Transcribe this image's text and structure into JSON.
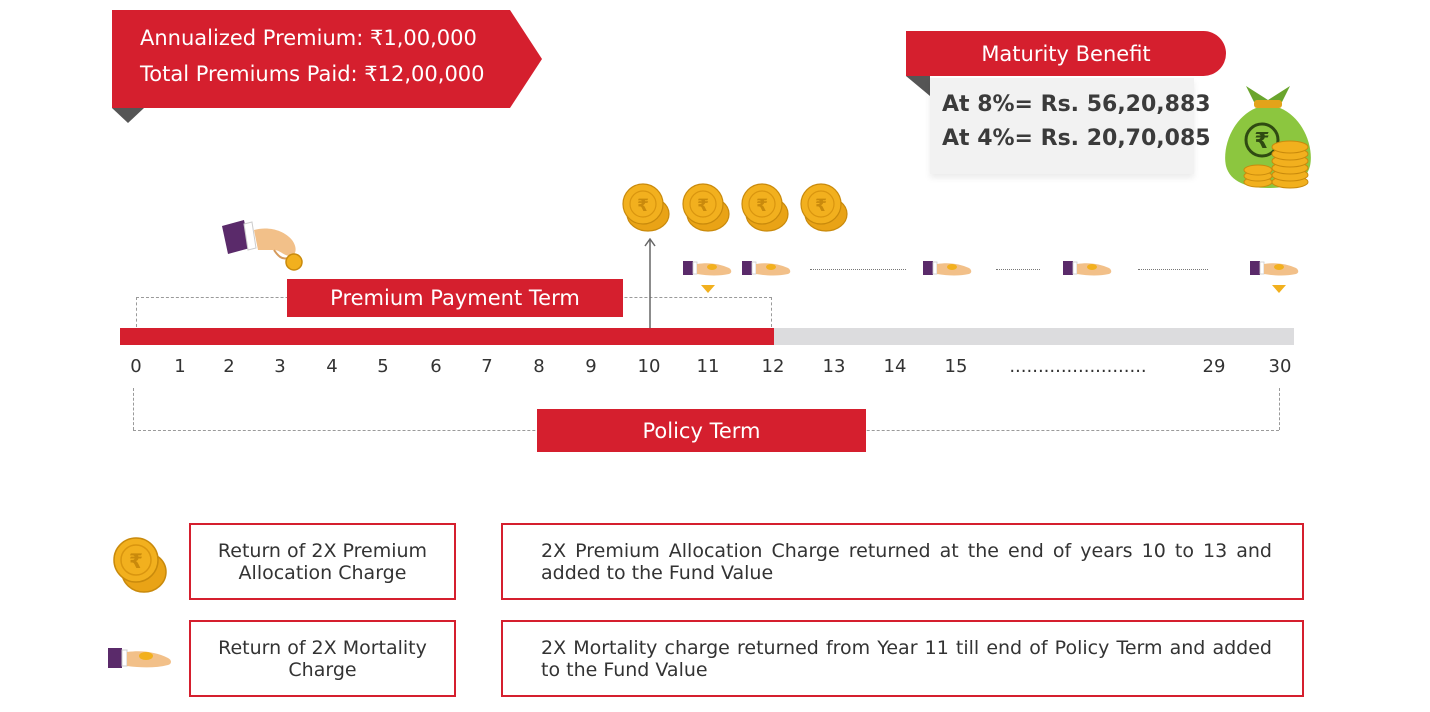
{
  "premium_banner": {
    "annualized_premium": "Annualized Premium: ₹1,00,000",
    "total_premiums_paid": "Total Premiums Paid: ₹12,00,000"
  },
  "maturity": {
    "title": "Maturity Benefit",
    "at_8": "At 8%= Rs. 56,20,883",
    "at_4": "At 4%= Rs. 20,70,085"
  },
  "premium_payment_term": "Premium Payment Term",
  "policy_term": "Policy Term",
  "timeline": {
    "ticks": [
      "0",
      "1",
      "2",
      "3",
      "4",
      "5",
      "6",
      "7",
      "8",
      "9",
      "10",
      "11",
      "12",
      "13",
      "14",
      "15",
      "........................",
      "29",
      "30"
    ],
    "paid_until_year": 12,
    "coin_years": [
      10,
      11,
      12,
      13
    ],
    "mortality_return_from_year": 11
  },
  "icons": {
    "coin": "rupee-coin-icon",
    "hand": "hand-receiving-icon",
    "money_bag": "money-bag-icon",
    "paying_hand": "paying-hand-icon",
    "rupee_symbol": "₹"
  },
  "legend": [
    {
      "label": "Return of 2X Premium Allocation Charge",
      "description": "2X Premium Allocation Charge returned at the end of years 10 to 13 and added to the Fund Value"
    },
    {
      "label": "Return of 2X Mortality Charge",
      "description": "2X Mortality charge returned from Year 11 till end of Policy Term and added to the Fund Value"
    }
  ],
  "colors": {
    "brand_red": "#d51f2e",
    "dark_red": "#8e1a20",
    "track_grey": "#dcdcde",
    "coin_gold": "#f2b01e",
    "sleeve_purple": "#5a2a6a",
    "bag_green": "#8cc63f"
  }
}
